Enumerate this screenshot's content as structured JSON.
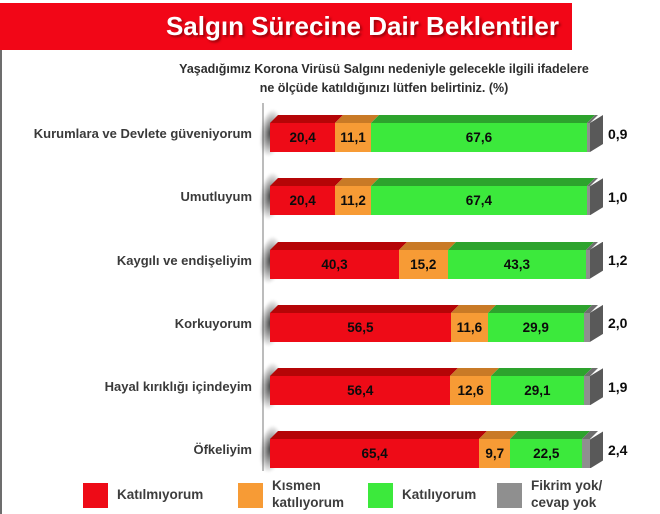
{
  "title": "Salgın Sürecine Dair Beklentiler",
  "subtitle": {
    "line1": "Yaşadığımız Korona Virüsü Salgını nedeniyle gelecekle ilgili ifadelere",
    "line2": "ne ölçüde katıldığınızı lütfen belirtiniz. (%)"
  },
  "colors": {
    "banner_red": "#f20617",
    "bar_red": "#ee0b17",
    "bar_red_bevel": "#b50507",
    "bar_orange": "#f79b35",
    "bar_orange_bevel": "#c97a26",
    "bar_green": "#3ce93c",
    "bar_green_bevel": "#2da32d",
    "bar_gray": "#8f8f8f",
    "bar_gray_bevel": "#6e6e6e",
    "end_cap_gray": "#595959",
    "axis_gray": "#bcbcbc"
  },
  "chart_data": {
    "type": "bar",
    "orientation": "horizontal",
    "stacked": true,
    "unit": "%",
    "xlim": [
      0,
      100
    ],
    "legend_position": "bottom",
    "categories": [
      "Kurumlara ve Devlete güveniyorum",
      "Umutluyum",
      "Kaygılı ve endişeliyim",
      "Korkuyorum",
      "Hayal kırıklığı içindeyim",
      "Öfkeliyim"
    ],
    "series": [
      {
        "name": "Katılmıyorum",
        "color": "#ee0b17",
        "bevel_color": "#b50507",
        "values": [
          20.4,
          20.4,
          40.3,
          56.5,
          56.4,
          65.4
        ]
      },
      {
        "name": "Kısmen katılıyorum",
        "color": "#f79b35",
        "bevel_color": "#c97a26",
        "values": [
          11.1,
          11.2,
          15.2,
          11.6,
          12.6,
          9.7
        ]
      },
      {
        "name": "Katılıyorum",
        "color": "#3ce93c",
        "bevel_color": "#2da32d",
        "values": [
          67.6,
          67.4,
          43.3,
          29.9,
          29.1,
          22.5
        ]
      },
      {
        "name": "Fikrim yok/cevap yok",
        "color": "#8f8f8f",
        "bevel_color": "#6e6e6e",
        "values": [
          0.9,
          1.0,
          1.2,
          2.0,
          1.9,
          2.4
        ]
      }
    ]
  },
  "rows": [
    {
      "label": "Kurumlara ve Devlete güveniyorum",
      "v1": "20,4",
      "v2": "11,1",
      "v3": "67,6",
      "v4": "0,9"
    },
    {
      "label": "Umutluyum",
      "v1": "20,4",
      "v2": "11,2",
      "v3": "67,4",
      "v4": "1,0"
    },
    {
      "label": "Kaygılı ve endişeliyim",
      "v1": "40,3",
      "v2": "15,2",
      "v3": "43,3",
      "v4": "1,2"
    },
    {
      "label": "Korkuyorum",
      "v1": "56,5",
      "v2": "11,6",
      "v3": "29,9",
      "v4": "2,0"
    },
    {
      "label": "Hayal kırıklığı içindeyim",
      "v1": "56,4",
      "v2": "12,6",
      "v3": "29,1",
      "v4": "1,9"
    },
    {
      "label": "Öfkeliyim",
      "v1": "65,4",
      "v2": "9,7",
      "v3": "22,5",
      "v4": "2,4"
    }
  ],
  "legend": {
    "items": [
      {
        "line1": "Katılmıyorum",
        "line2": "",
        "color": "#ee0b17"
      },
      {
        "line1": "Kısmen",
        "line2": "katılıyorum",
        "color": "#f79b35"
      },
      {
        "line1": "Katılıyorum",
        "line2": "",
        "color": "#3ce93c"
      },
      {
        "line1": "Fikrim yok/",
        "line2": "cevap yok",
        "color": "#8f8f8f"
      }
    ]
  }
}
